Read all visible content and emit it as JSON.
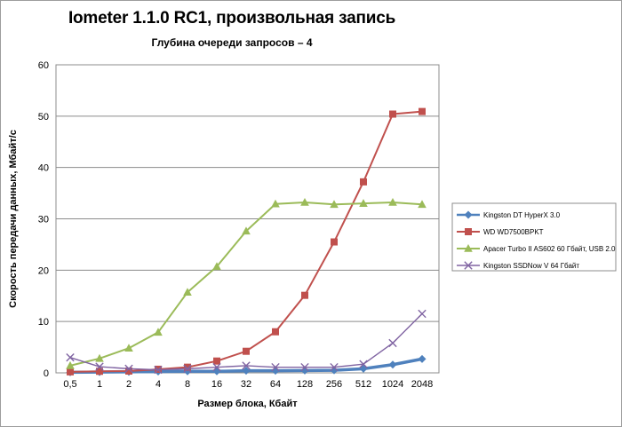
{
  "chart": {
    "title": "Iometer 1.1.0 RC1, произвольная запись",
    "subtitle": "Глубина очереди запросов – 4"
  },
  "chart_data": {
    "type": "line",
    "title": "Iometer 1.1.0 RC1, произвольная запись",
    "subtitle": "Глубина очереди запросов – 4",
    "xlabel": "Размер блока, Кбайт",
    "ylabel": "Скорость передачи данных, Мбайт/с",
    "categories": [
      "0,5",
      "1",
      "2",
      "4",
      "8",
      "16",
      "32",
      "64",
      "128",
      "256",
      "512",
      "1024",
      "2048"
    ],
    "ylim": [
      0,
      60
    ],
    "yticks": [
      0,
      10,
      20,
      30,
      40,
      50,
      60
    ],
    "grid": true,
    "legend_position": "right",
    "plot_border_color": "#8c8c8c",
    "gridline_color": "#8c8c8c",
    "series": [
      {
        "name": "Kingston DT HyperX 3.0",
        "color": "#4f81bd",
        "marker": "diamond",
        "line_width": 3.5,
        "values": [
          0.1,
          0.15,
          0.2,
          0.25,
          0.3,
          0.3,
          0.4,
          0.4,
          0.45,
          0.5,
          0.8,
          1.6,
          2.7
        ]
      },
      {
        "name": "WD WD7500BPKT",
        "color": "#c0504d",
        "marker": "square",
        "line_width": 2,
        "values": [
          0.2,
          0.3,
          0.35,
          0.7,
          1.1,
          2.3,
          4.2,
          8.0,
          15.1,
          25.5,
          37.2,
          50.4,
          50.9
        ]
      },
      {
        "name": "Apacer Turbo II AS602 60 Гбайт, USB 2.0",
        "color": "#9bbb59",
        "marker": "triangle",
        "line_width": 2,
        "values": [
          1.4,
          2.8,
          4.8,
          7.9,
          15.7,
          20.7,
          27.6,
          32.9,
          33.2,
          32.8,
          33.0,
          33.2,
          32.8
        ]
      },
      {
        "name": "Kingston SSDNow V 64 Гбайт",
        "color": "#8064a2",
        "marker": "x",
        "line_width": 1.4,
        "values": [
          3.0,
          1.2,
          0.8,
          0.6,
          0.8,
          1.1,
          1.4,
          1.1,
          1.1,
          1.1,
          1.7,
          5.8,
          11.5
        ]
      }
    ]
  }
}
